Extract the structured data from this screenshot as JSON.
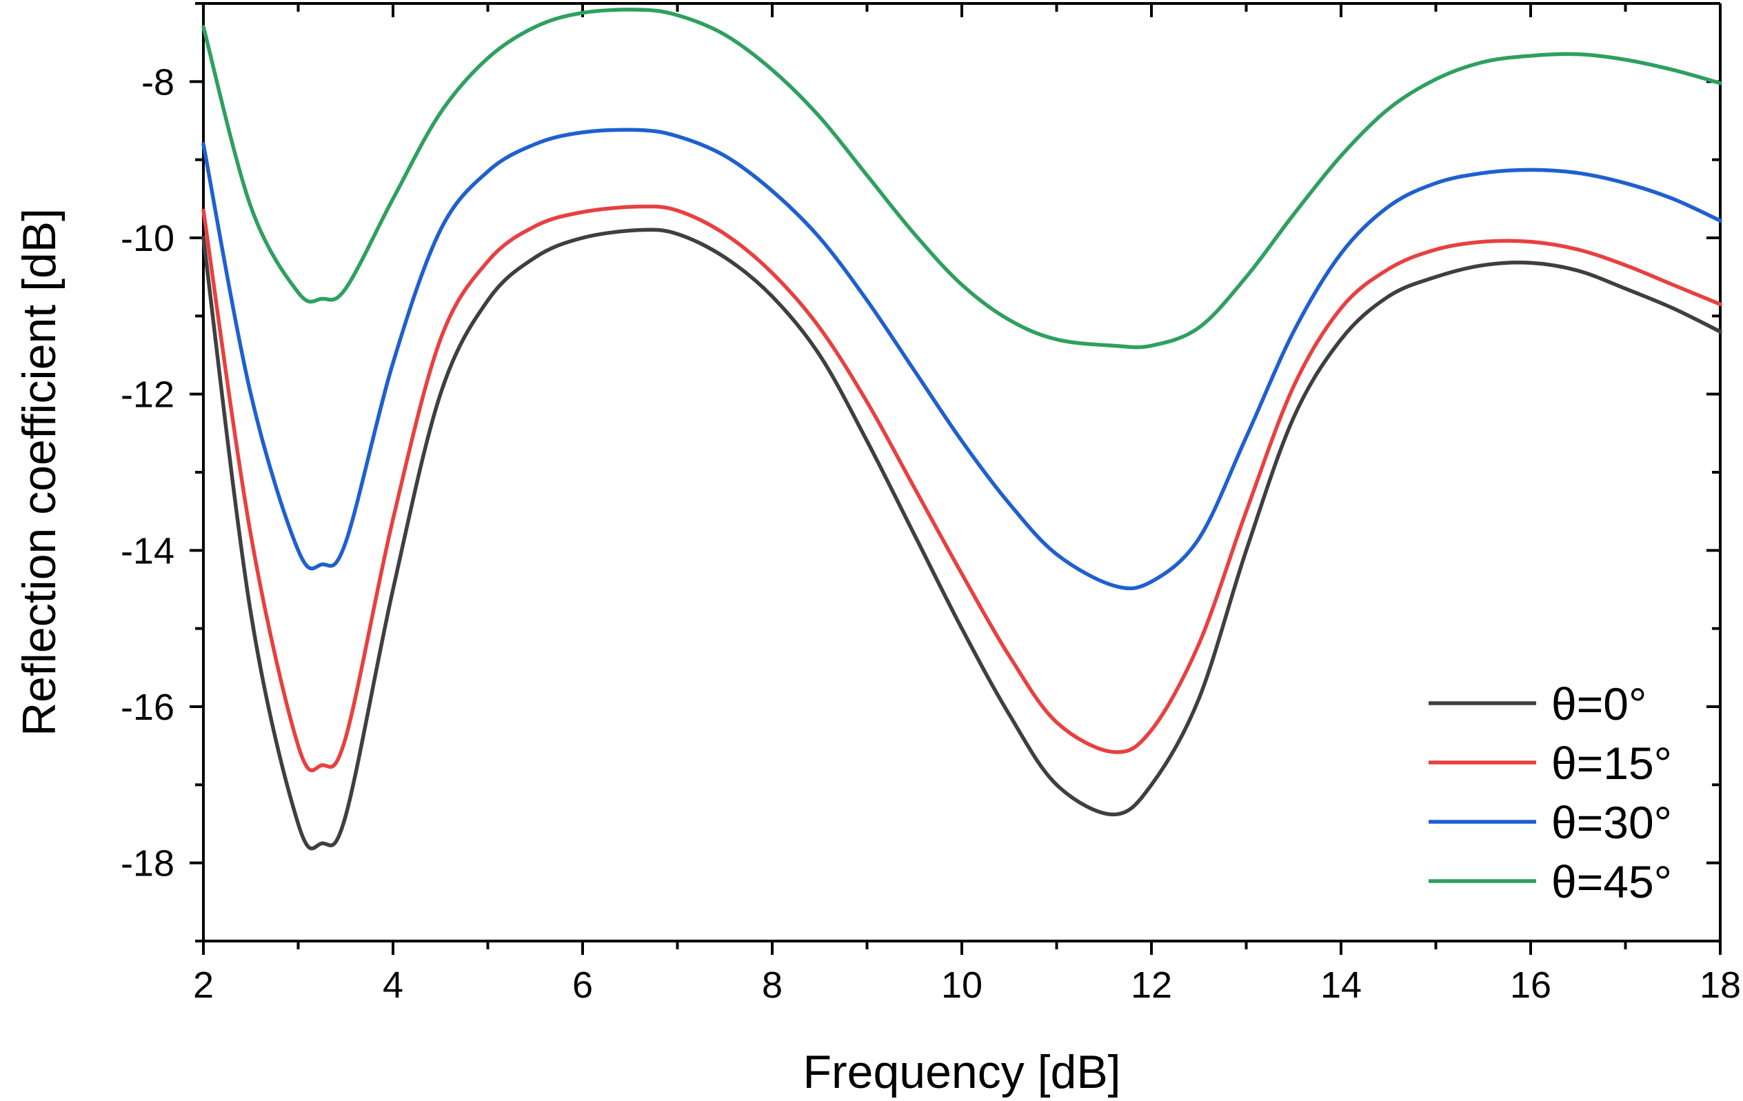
{
  "chart_data": {
    "type": "line",
    "title": "",
    "xlabel": "Frequency [dB]",
    "ylabel": "Reflection coefficient [dB]",
    "xlim": [
      2,
      18
    ],
    "ylim": [
      -19,
      -7
    ],
    "x_ticks": [
      2,
      4,
      6,
      8,
      10,
      12,
      14,
      16,
      18
    ],
    "y_ticks": [
      -18,
      -16,
      -14,
      -12,
      -10,
      -8
    ],
    "legend_position": "bottom-right",
    "grid": false,
    "colors": {
      "theta0": "#3f3f3f",
      "theta15": "#e84040",
      "theta30": "#1f60d0",
      "theta45": "#2ea060"
    },
    "x": [
      2.0,
      2.5,
      3.0,
      3.25,
      3.5,
      4.0,
      4.5,
      5.0,
      5.5,
      6.0,
      6.6,
      7.0,
      7.5,
      8.0,
      8.5,
      9.0,
      9.5,
      10.0,
      10.5,
      11.0,
      11.6,
      12.0,
      12.5,
      13.0,
      13.5,
      14.0,
      14.5,
      15.0,
      15.5,
      16.0,
      16.5,
      17.0,
      17.5,
      18.0
    ],
    "series": [
      {
        "name": "θ=0°",
        "values": [
          -10.0,
          -14.8,
          -17.5,
          -17.75,
          -17.4,
          -14.5,
          -12.0,
          -10.8,
          -10.25,
          -10.0,
          -9.9,
          -9.95,
          -10.25,
          -10.75,
          -11.5,
          -12.6,
          -13.8,
          -15.0,
          -16.1,
          -17.0,
          -17.38,
          -17.0,
          -15.9,
          -14.0,
          -12.3,
          -11.3,
          -10.75,
          -10.5,
          -10.35,
          -10.32,
          -10.42,
          -10.65,
          -10.9,
          -11.2
        ]
      },
      {
        "name": "θ=15°",
        "values": [
          -9.65,
          -13.8,
          -16.5,
          -16.75,
          -16.4,
          -13.6,
          -11.3,
          -10.3,
          -9.85,
          -9.67,
          -9.6,
          -9.65,
          -9.95,
          -10.45,
          -11.15,
          -12.1,
          -13.2,
          -14.3,
          -15.35,
          -16.2,
          -16.58,
          -16.3,
          -15.2,
          -13.5,
          -11.9,
          -10.9,
          -10.4,
          -10.15,
          -10.05,
          -10.05,
          -10.15,
          -10.35,
          -10.6,
          -10.85
        ]
      },
      {
        "name": "θ=30°",
        "values": [
          -8.8,
          -12.0,
          -14.0,
          -14.18,
          -13.9,
          -11.6,
          -9.9,
          -9.15,
          -8.8,
          -8.65,
          -8.62,
          -8.7,
          -8.95,
          -9.4,
          -10.0,
          -10.8,
          -11.7,
          -12.6,
          -13.4,
          -14.05,
          -14.45,
          -14.4,
          -13.85,
          -12.55,
          -11.2,
          -10.2,
          -9.6,
          -9.3,
          -9.17,
          -9.13,
          -9.17,
          -9.3,
          -9.5,
          -9.78
        ]
      },
      {
        "name": "θ=45°",
        "values": [
          -7.3,
          -9.6,
          -10.7,
          -10.78,
          -10.65,
          -9.5,
          -8.4,
          -7.7,
          -7.3,
          -7.12,
          -7.08,
          -7.15,
          -7.4,
          -7.85,
          -8.45,
          -9.2,
          -9.95,
          -10.6,
          -11.05,
          -11.3,
          -11.38,
          -11.38,
          -11.15,
          -10.5,
          -9.7,
          -8.95,
          -8.35,
          -7.97,
          -7.75,
          -7.67,
          -7.65,
          -7.72,
          -7.85,
          -8.02
        ]
      }
    ]
  }
}
